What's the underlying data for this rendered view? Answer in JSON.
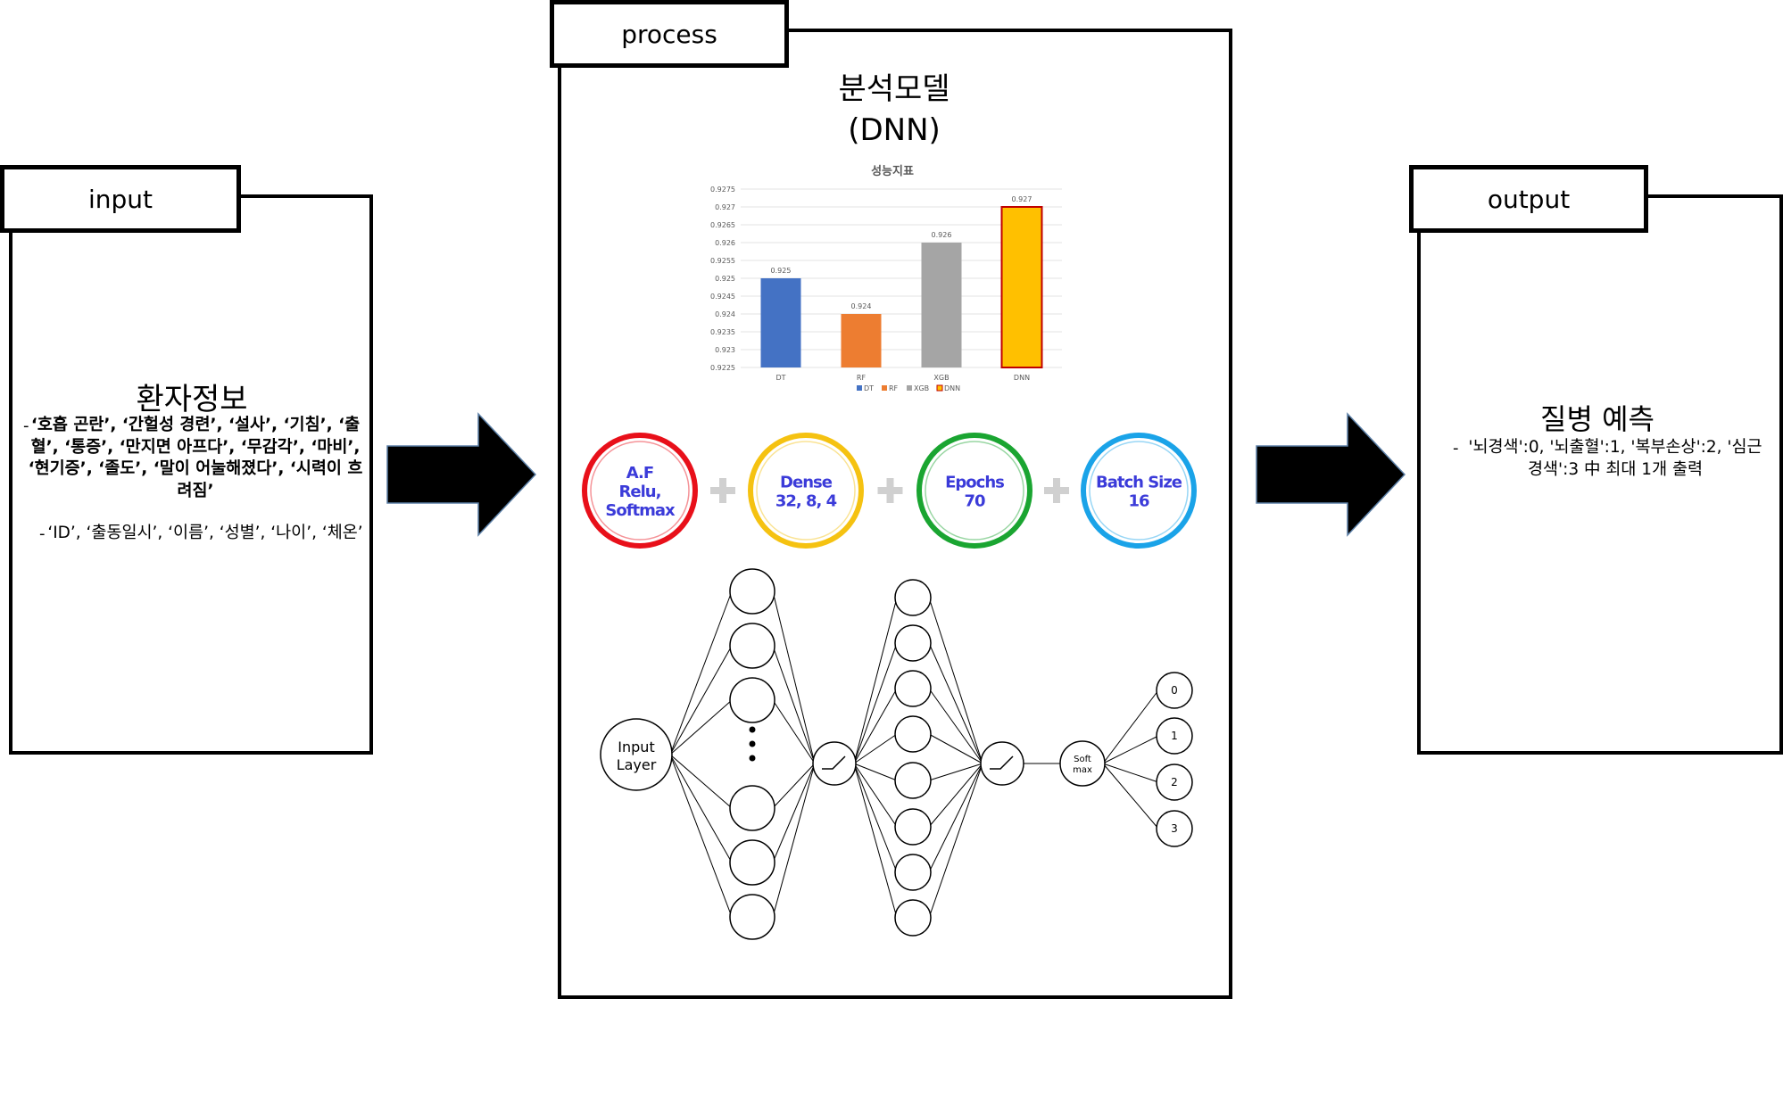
{
  "input": {
    "tab_label": "input",
    "title": "환자정보",
    "bullet_1": "‘호흡 곤란’, ‘간헐성 경련’, ‘설사’, ‘기침’, ‘출혈’, ‘통증’, ‘만지면 아프다’, ‘무감각’, ‘마비’, ‘현기증’, ‘졸도’, ‘말이 어눌해졌다’, ‘시력이 흐려짐’",
    "bullet_2": "‘ID’, ‘출동일시’, ‘이름’, ‘성별’, ‘나이’, ‘체온’",
    "bullet_marker": "-"
  },
  "process": {
    "tab_label": "process",
    "title_line_1": "분석모델",
    "title_line_2": "(DNN)"
  },
  "output": {
    "tab_label": "output",
    "title": "질병 예측",
    "bullet": "'뇌경색':0, '뇌출혈':1, '복부손상':2, '심근경색':3 中 최대 1개 출력",
    "bullet_marker": "-"
  },
  "chart_data": {
    "type": "bar",
    "title": "성능지표",
    "categories": [
      "DT",
      "RF",
      "XGB",
      "DNN"
    ],
    "values": [
      0.925,
      0.924,
      0.926,
      0.927
    ],
    "data_labels": [
      "0.925",
      "0.924",
      "0.926",
      "0.927"
    ],
    "ylim": [
      0.9225,
      0.9275
    ],
    "yticks": [
      "0.9275",
      "0.927",
      "0.9265",
      "0.926",
      "0.9255",
      "0.925",
      "0.9245",
      "0.924",
      "0.9235",
      "0.923",
      "0.9225"
    ],
    "legend": [
      "DT",
      "RF",
      "XGB",
      "DNN"
    ],
    "legend_position": "bottom",
    "colors": [
      "#4472c4",
      "#ed7d31",
      "#a5a5a5",
      "#ffc000"
    ],
    "grid": true
  },
  "hyperparameters": [
    {
      "text": "A.F\nRelu,\nSoftmax",
      "color": "#e8101a"
    },
    {
      "text": "Dense\n32, 8, 4",
      "color": "#f5c211"
    },
    {
      "text": "Epochs\n70",
      "color": "#1aa531"
    },
    {
      "text": "Batch Size\n16",
      "color": "#1aa3e8"
    }
  ],
  "hyperparam_text_color": "#3b3bd9",
  "plus_color": "#d0d0d0",
  "network": {
    "input_label": "Input Layer",
    "softmax_label": "Soft max",
    "outputs": [
      "0",
      "1",
      "2",
      "3"
    ]
  }
}
